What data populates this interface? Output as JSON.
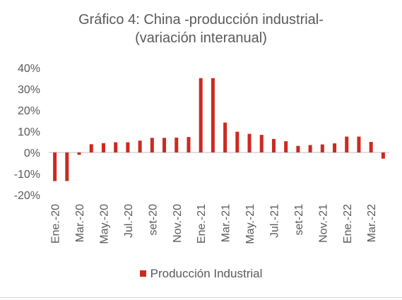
{
  "chart_data": {
    "type": "bar",
    "title_line1": "Gráfico 4: China -producción industrial-",
    "title_line2": "(variación interanual)",
    "xlabel": "",
    "ylabel": "",
    "ylim": [
      -20,
      40
    ],
    "yticks": [
      "40%",
      "30%",
      "20%",
      "10%",
      "0%",
      "-10%",
      "-20%"
    ],
    "ytick_values": [
      40,
      30,
      20,
      10,
      0,
      -10,
      -20
    ],
    "grid": false,
    "legend_position": "bottom",
    "bar_color": "#cc2a1f",
    "axis_color": "#bfbfbf",
    "categories": [
      "Ene.-20",
      "Feb.-20",
      "Mar.-20",
      "Abr.-20",
      "May.-20",
      "Jun.-20",
      "Jul.-20",
      "Ago.-20",
      "set-20",
      "Oct.-20",
      "Nov.-20",
      "Dic.-20",
      "Ene.-21",
      "Feb.-21",
      "Mar.-21",
      "Abr.-21",
      "May.-21",
      "Jun.-21",
      "Jul.-21",
      "Ago.-21",
      "set-21",
      "Oct.-21",
      "Nov.-21",
      "Dic.-21",
      "Ene.-22",
      "Feb.-22",
      "Mar.-22",
      "Abr.-22"
    ],
    "visible_tick_labels": [
      "Ene.-20",
      "Mar.-20",
      "May.-20",
      "Jul.-20",
      "set-20",
      "Nov.-20",
      "Ene.-21",
      "Mar.-21",
      "May.-21",
      "Jul.-21",
      "set-21",
      "Nov.-21",
      "Ene.-22",
      "Mar.-22"
    ],
    "series": [
      {
        "name": "Producción Industrial",
        "values": [
          -13.5,
          -13.5,
          -1.1,
          3.9,
          4.4,
          4.8,
          4.8,
          5.6,
          6.9,
          6.9,
          7.0,
          7.3,
          35.1,
          35.1,
          14.1,
          9.8,
          8.8,
          8.3,
          6.4,
          5.3,
          3.1,
          3.5,
          3.8,
          4.3,
          7.5,
          7.5,
          5.0,
          -2.9
        ]
      }
    ]
  }
}
